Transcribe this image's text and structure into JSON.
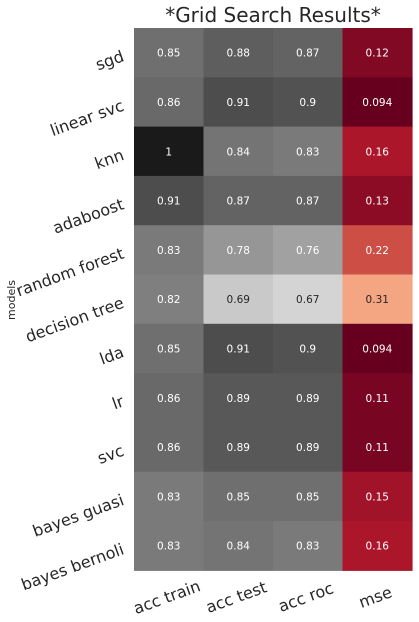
{
  "chart_data": {
    "type": "heatmap",
    "title": "*Grid Search Results*",
    "ylabel": "models",
    "xlabel": "",
    "columns": [
      "acc train",
      "acc test",
      "acc roc",
      "mse"
    ],
    "rows": [
      "sgd",
      "linear svc",
      "knn",
      "adaboost",
      "random forest",
      "decision tree",
      "lda",
      "lr",
      "svc",
      "bayes guasi",
      "bayes bernoli"
    ],
    "values": [
      [
        0.85,
        0.88,
        0.87,
        0.12
      ],
      [
        0.86,
        0.91,
        0.9,
        0.094
      ],
      [
        1,
        0.84,
        0.83,
        0.16
      ],
      [
        0.91,
        0.87,
        0.87,
        0.13
      ],
      [
        0.83,
        0.78,
        0.76,
        0.22
      ],
      [
        0.82,
        0.69,
        0.67,
        0.31
      ],
      [
        0.85,
        0.91,
        0.9,
        0.094
      ],
      [
        0.86,
        0.89,
        0.89,
        0.11
      ],
      [
        0.86,
        0.89,
        0.89,
        0.11
      ],
      [
        0.83,
        0.85,
        0.85,
        0.15
      ],
      [
        0.83,
        0.84,
        0.83,
        0.16
      ]
    ],
    "labels": [
      [
        "0.85",
        "0.88",
        "0.87",
        "0.12"
      ],
      [
        "0.86",
        "0.91",
        "0.9",
        "0.094"
      ],
      [
        "1",
        "0.84",
        "0.83",
        "0.16"
      ],
      [
        "0.91",
        "0.87",
        "0.87",
        "0.13"
      ],
      [
        "0.83",
        "0.78",
        "0.76",
        "0.22"
      ],
      [
        "0.82",
        "0.69",
        "0.67",
        "0.31"
      ],
      [
        "0.85",
        "0.91",
        "0.9",
        "0.094"
      ],
      [
        "0.86",
        "0.89",
        "0.89",
        "0.11"
      ],
      [
        "0.86",
        "0.89",
        "0.89",
        "0.11"
      ],
      [
        "0.83",
        "0.85",
        "0.85",
        "0.15"
      ],
      [
        "0.83",
        "0.84",
        "0.83",
        "0.16"
      ]
    ],
    "colormaps": {
      "accuracy": "greys",
      "mse": "reds"
    },
    "grid": false,
    "legend": "none"
  }
}
